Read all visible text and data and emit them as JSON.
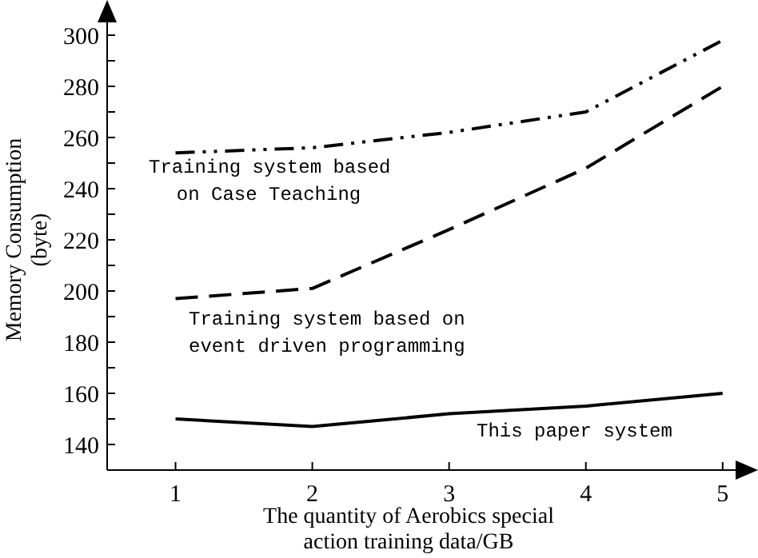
{
  "chart_data": {
    "type": "line",
    "xlabel": "The quantity of Aerobics special\naction training data/GB",
    "ylabel": "Memory Consumption\n(byte)",
    "x": [
      1,
      2,
      3,
      4,
      5
    ],
    "series": [
      {
        "name": "Training system based\non Case Teaching",
        "color": "#000000",
        "line_style": "dotted",
        "values": [
          254,
          256,
          262,
          270,
          298
        ]
      },
      {
        "name": "Training system based on\nevent driven programming",
        "color": "#000000",
        "line_style": "dashed",
        "values": [
          197,
          201,
          224,
          248,
          280
        ]
      },
      {
        "name": "This paper system",
        "color": "#000000",
        "line_style": "solid",
        "values": [
          150,
          147,
          152,
          155,
          160
        ]
      }
    ],
    "xlim": [
      0.5,
      5.2
    ],
    "xticks": [
      1,
      2,
      3,
      4,
      5
    ],
    "ylim": [
      130,
      310
    ],
    "yticks": [
      {
        "value": 130,
        "label": null
      },
      140,
      {
        "value": 150,
        "label": null
      },
      160,
      {
        "value": 170,
        "label": null
      },
      180,
      {
        "value": 190,
        "label": null
      },
      200,
      {
        "value": 210,
        "label": null
      },
      220,
      {
        "value": 230,
        "label": null
      },
      240,
      {
        "value": 250,
        "label": null
      },
      260,
      {
        "value": 270,
        "label": null
      },
      280,
      {
        "value": 290,
        "label": null
      },
      300
    ],
    "grid": false,
    "legend": false,
    "marker": "none"
  }
}
